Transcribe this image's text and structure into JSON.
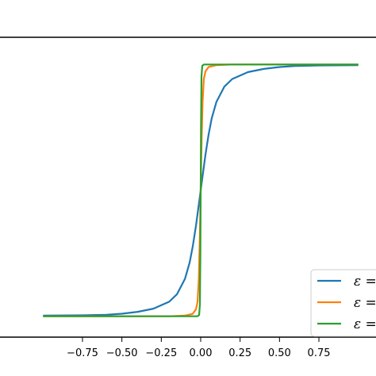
{
  "chart_data": {
    "type": "line",
    "title": "",
    "xlabel": "",
    "ylabel": "",
    "xlim": [
      -1.0,
      1.0
    ],
    "ylim": [
      -1.1,
      1.1
    ],
    "grid": false,
    "legend_position": "bottom-right",
    "x_ticks": [
      {
        "value": -0.75,
        "label": "−0.75"
      },
      {
        "value": -0.5,
        "label": "−0.50"
      },
      {
        "value": -0.25,
        "label": "−0.25"
      },
      {
        "value": 0.0,
        "label": "0.00"
      },
      {
        "value": 0.25,
        "label": "0.25"
      },
      {
        "value": 0.5,
        "label": "0.50"
      },
      {
        "value": 0.75,
        "label": "0.75"
      }
    ],
    "series": [
      {
        "name": "ε =",
        "color": "#1f77b4",
        "points": [
          [
            -1.0,
            -0.99
          ],
          [
            -0.75,
            -0.987
          ],
          [
            -0.6,
            -0.983
          ],
          [
            -0.5,
            -0.975
          ],
          [
            -0.4,
            -0.96
          ],
          [
            -0.3,
            -0.935
          ],
          [
            -0.2,
            -0.88
          ],
          [
            -0.15,
            -0.82
          ],
          [
            -0.1,
            -0.7
          ],
          [
            -0.07,
            -0.57
          ],
          [
            -0.05,
            -0.44
          ],
          [
            -0.03,
            -0.28
          ],
          [
            -0.015,
            -0.14
          ],
          [
            0.0,
            0.0
          ],
          [
            0.015,
            0.14
          ],
          [
            0.03,
            0.28
          ],
          [
            0.05,
            0.44
          ],
          [
            0.07,
            0.57
          ],
          [
            0.1,
            0.7
          ],
          [
            0.15,
            0.82
          ],
          [
            0.2,
            0.88
          ],
          [
            0.3,
            0.935
          ],
          [
            0.4,
            0.96
          ],
          [
            0.5,
            0.975
          ],
          [
            0.6,
            0.983
          ],
          [
            0.75,
            0.987
          ],
          [
            1.0,
            0.99
          ]
        ]
      },
      {
        "name": "ε =",
        "color": "#ff7f0e",
        "points": [
          [
            -1.0,
            -0.995
          ],
          [
            -0.2,
            -0.995
          ],
          [
            -0.1,
            -0.99
          ],
          [
            -0.05,
            -0.975
          ],
          [
            -0.03,
            -0.94
          ],
          [
            -0.02,
            -0.88
          ],
          [
            -0.012,
            -0.7
          ],
          [
            -0.006,
            -0.4
          ],
          [
            0.0,
            0.0
          ],
          [
            0.006,
            0.4
          ],
          [
            0.012,
            0.7
          ],
          [
            0.02,
            0.88
          ],
          [
            0.03,
            0.94
          ],
          [
            0.05,
            0.975
          ],
          [
            0.1,
            0.99
          ],
          [
            0.2,
            0.995
          ],
          [
            1.0,
            0.995
          ]
        ]
      },
      {
        "name": "ε =",
        "color": "#2ca02c",
        "points": [
          [
            -1.0,
            -0.995
          ],
          [
            -0.02,
            -0.995
          ],
          [
            -0.01,
            -0.985
          ],
          [
            -0.005,
            -0.9
          ],
          [
            -0.002,
            -0.5
          ],
          [
            0.0,
            0.0
          ],
          [
            0.002,
            0.5
          ],
          [
            0.005,
            0.9
          ],
          [
            0.01,
            0.985
          ],
          [
            0.02,
            0.995
          ],
          [
            1.0,
            0.995
          ]
        ]
      }
    ]
  }
}
